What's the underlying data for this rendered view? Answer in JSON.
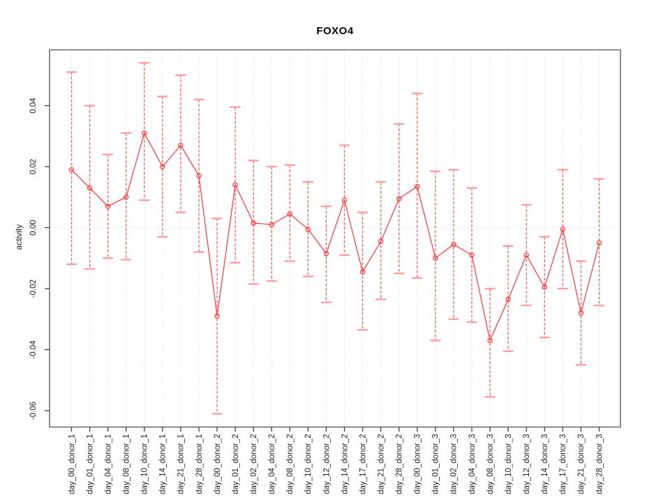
{
  "page": {
    "background": "#ffffff"
  },
  "chart_data": {
    "type": "line",
    "title": "FOXO4",
    "xlabel": "",
    "ylabel": "activity",
    "legend_position": "none",
    "grid": {
      "vertical_dotted_per_category": true,
      "horizontal_dotted_at_zero": true
    },
    "ylim": [
      -0.0654,
      0.0583
    ],
    "yticks": [
      0.04,
      0.02,
      0,
      -0.02,
      -0.04,
      -0.06
    ],
    "ytick_labels": [
      "0.04",
      "0.02",
      "0.00",
      "-0.02",
      "-0.04",
      "-0.06"
    ],
    "categories": [
      "day_00_donor_1",
      "day_01_donor_1",
      "day_04_donor_1",
      "day_08_donor_1",
      "day_10_donor_1",
      "day_14_donor_1",
      "day_21_donor_1",
      "day_28_donor_1",
      "day_00_donor_2",
      "day_01_donor_2",
      "day_02_donor_2",
      "day_04_donor_2",
      "day_08_donor_2",
      "day_10_donor_2",
      "day_12_donor_2",
      "day_14_donor_2",
      "day_17_donor_2",
      "day_21_donor_2",
      "day_28_donor_2",
      "day_00_donor_3",
      "day_01_donor_3",
      "day_02_donor_3",
      "day_04_donor_3",
      "day_08_donor_3",
      "day_10_donor_3",
      "day_12_donor_3",
      "day_14_donor_3",
      "day_17_donor_3",
      "day_21_donor_3",
      "day_28_donor_3"
    ],
    "series": [
      {
        "name": "activity",
        "marker": "open-circle",
        "values": [
          0.019,
          0.013,
          0.007,
          0.01,
          0.031,
          0.02,
          0.027,
          0.017,
          -0.029,
          0.014,
          0.0015,
          0.001,
          0.0045,
          -0.0005,
          -0.0085,
          0.009,
          -0.0145,
          -0.0045,
          0.0095,
          0.0135,
          -0.01,
          -0.0055,
          -0.009,
          -0.037,
          -0.0235,
          -0.009,
          -0.0195,
          -0.0005,
          -0.028,
          -0.005
        ],
        "error_high": [
          0.051,
          0.04,
          0.024,
          0.031,
          0.054,
          0.043,
          0.05,
          0.042,
          0.003,
          0.0395,
          0.022,
          0.02,
          0.0205,
          0.015,
          0.007,
          0.027,
          0.005,
          0.015,
          0.034,
          0.044,
          0.0185,
          0.019,
          0.013,
          -0.02,
          -0.006,
          0.0075,
          -0.003,
          0.019,
          -0.011,
          0.016
        ],
        "error_low": [
          -0.012,
          -0.0135,
          -0.01,
          -0.0105,
          0.009,
          -0.003,
          0.005,
          -0.008,
          -0.061,
          -0.0115,
          -0.0185,
          -0.0175,
          -0.011,
          -0.016,
          -0.0245,
          -0.009,
          -0.0335,
          -0.0235,
          -0.015,
          -0.0165,
          -0.037,
          -0.03,
          -0.031,
          -0.0555,
          -0.0405,
          -0.0255,
          -0.036,
          -0.02,
          -0.045,
          -0.0255
        ]
      }
    ],
    "colors": {
      "series_line": "#ff4040",
      "error_stem": "#ff4d4d",
      "error_cap": "#ff9e9e",
      "grid": "#dcdcdc",
      "axis_box": "#6e6e6e",
      "tick": "#3c3c3c",
      "text": "#1f1f1f",
      "title_text": "#000000"
    }
  }
}
